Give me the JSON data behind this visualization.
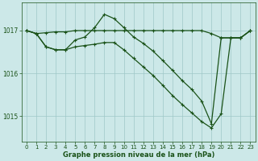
{
  "background_color": "#cce8e8",
  "line_color": "#1a5218",
  "grid_color": "#9fc8c8",
  "xlabel": "Graphe pression niveau de la mer (hPa)",
  "xlabel_color": "#1a5218",
  "tick_color": "#1a5218",
  "axis_bg": "#cce8e8",
  "hours": [
    0,
    1,
    2,
    3,
    4,
    5,
    6,
    7,
    8,
    9,
    10,
    11,
    12,
    13,
    14,
    15,
    16,
    17,
    18,
    19,
    20,
    21,
    22,
    23
  ],
  "s1": [
    1017.0,
    1016.93,
    1016.95,
    1016.97,
    1016.97,
    1017.0,
    1017.0,
    1017.0,
    1017.0,
    1017.0,
    1017.0,
    1017.0,
    1017.0,
    1017.0,
    1017.0,
    1017.0,
    1017.0,
    1017.0,
    1017.0,
    1016.93,
    1016.83,
    1016.83,
    1016.83,
    1017.0
  ],
  "s2": [
    1017.0,
    1016.93,
    1016.62,
    1016.55,
    1016.55,
    1016.78,
    1016.85,
    1017.07,
    1017.38,
    1017.28,
    1017.07,
    1016.85,
    1016.7,
    1016.52,
    1016.3,
    1016.07,
    1015.83,
    1015.62,
    1015.35,
    1014.82,
    1016.83,
    1016.83,
    1016.83,
    1017.0
  ],
  "s3": [
    1017.0,
    1016.93,
    1016.62,
    1016.55,
    1016.55,
    1016.62,
    1016.65,
    1016.68,
    1016.72,
    1016.72,
    1016.55,
    1016.35,
    1016.15,
    1015.95,
    1015.72,
    1015.48,
    1015.27,
    1015.07,
    1014.87,
    1014.72,
    1015.05,
    1016.83,
    1016.83,
    1017.0
  ],
  "ylim": [
    1014.4,
    1017.65
  ],
  "yticks": [
    1015,
    1016,
    1017
  ],
  "xlim": [
    -0.5,
    23.5
  ],
  "xticks": [
    0,
    1,
    2,
    3,
    4,
    5,
    6,
    7,
    8,
    9,
    10,
    11,
    12,
    13,
    14,
    15,
    16,
    17,
    18,
    19,
    20,
    21,
    22,
    23
  ],
  "markersize": 3.5,
  "linewidth": 0.9
}
